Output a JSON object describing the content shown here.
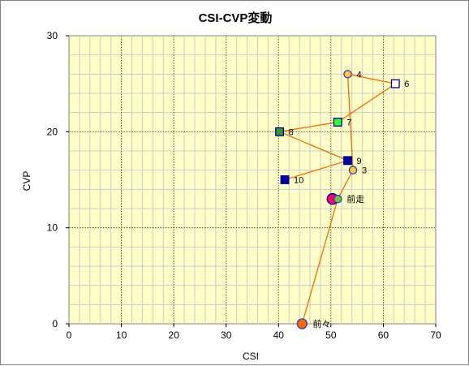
{
  "chart_data": {
    "type": "scatter",
    "title": "CSI-CVP変動",
    "xlabel": "CSI",
    "ylabel": "CVP",
    "xlim": [
      0,
      70
    ],
    "ylim": [
      0,
      30
    ],
    "xticks": [
      0,
      10,
      20,
      30,
      40,
      50,
      60,
      70
    ],
    "yticks": [
      0,
      10,
      20,
      30
    ],
    "grid": true,
    "background_color": "#ffffc8",
    "line_color": "#ff6600",
    "points": [
      {
        "label": "前々",
        "x": 44.5,
        "y": 0,
        "marker": "circle",
        "fill": "#ff6600",
        "stroke": "#3333cc"
      },
      {
        "label": "前走",
        "x": 51.3,
        "y": 13,
        "marker": "circle",
        "fill": "#66cc33",
        "stroke": "#3333cc"
      },
      {
        "label": "3",
        "x": 54.2,
        "y": 16,
        "marker": "circle",
        "fill": "#ffcc33",
        "stroke": "#3333cc"
      },
      {
        "label": "4",
        "x": 53.2,
        "y": 26,
        "marker": "circle",
        "fill": "#ffcc33",
        "stroke": "#3333cc"
      },
      {
        "label": "6",
        "x": 62.3,
        "y": 25,
        "marker": "square",
        "fill": "#ffffff",
        "stroke": "#000099"
      },
      {
        "label": "7",
        "x": 51.3,
        "y": 21,
        "marker": "square",
        "fill": "#33ff33",
        "stroke": "#000099"
      },
      {
        "label": "8",
        "x": 40.2,
        "y": 20,
        "marker": "square",
        "fill": "#339933",
        "stroke": "#000099"
      },
      {
        "label": "9",
        "x": 53.2,
        "y": 17,
        "marker": "square",
        "fill": "#000099",
        "stroke": "#000099"
      },
      {
        "label": "10",
        "x": 41.2,
        "y": 15,
        "marker": "square",
        "fill": "#000099",
        "stroke": "#000099"
      }
    ],
    "current_marker": {
      "x": 50.3,
      "y": 13,
      "fill": "#ff0066",
      "stroke": "#000099"
    }
  }
}
